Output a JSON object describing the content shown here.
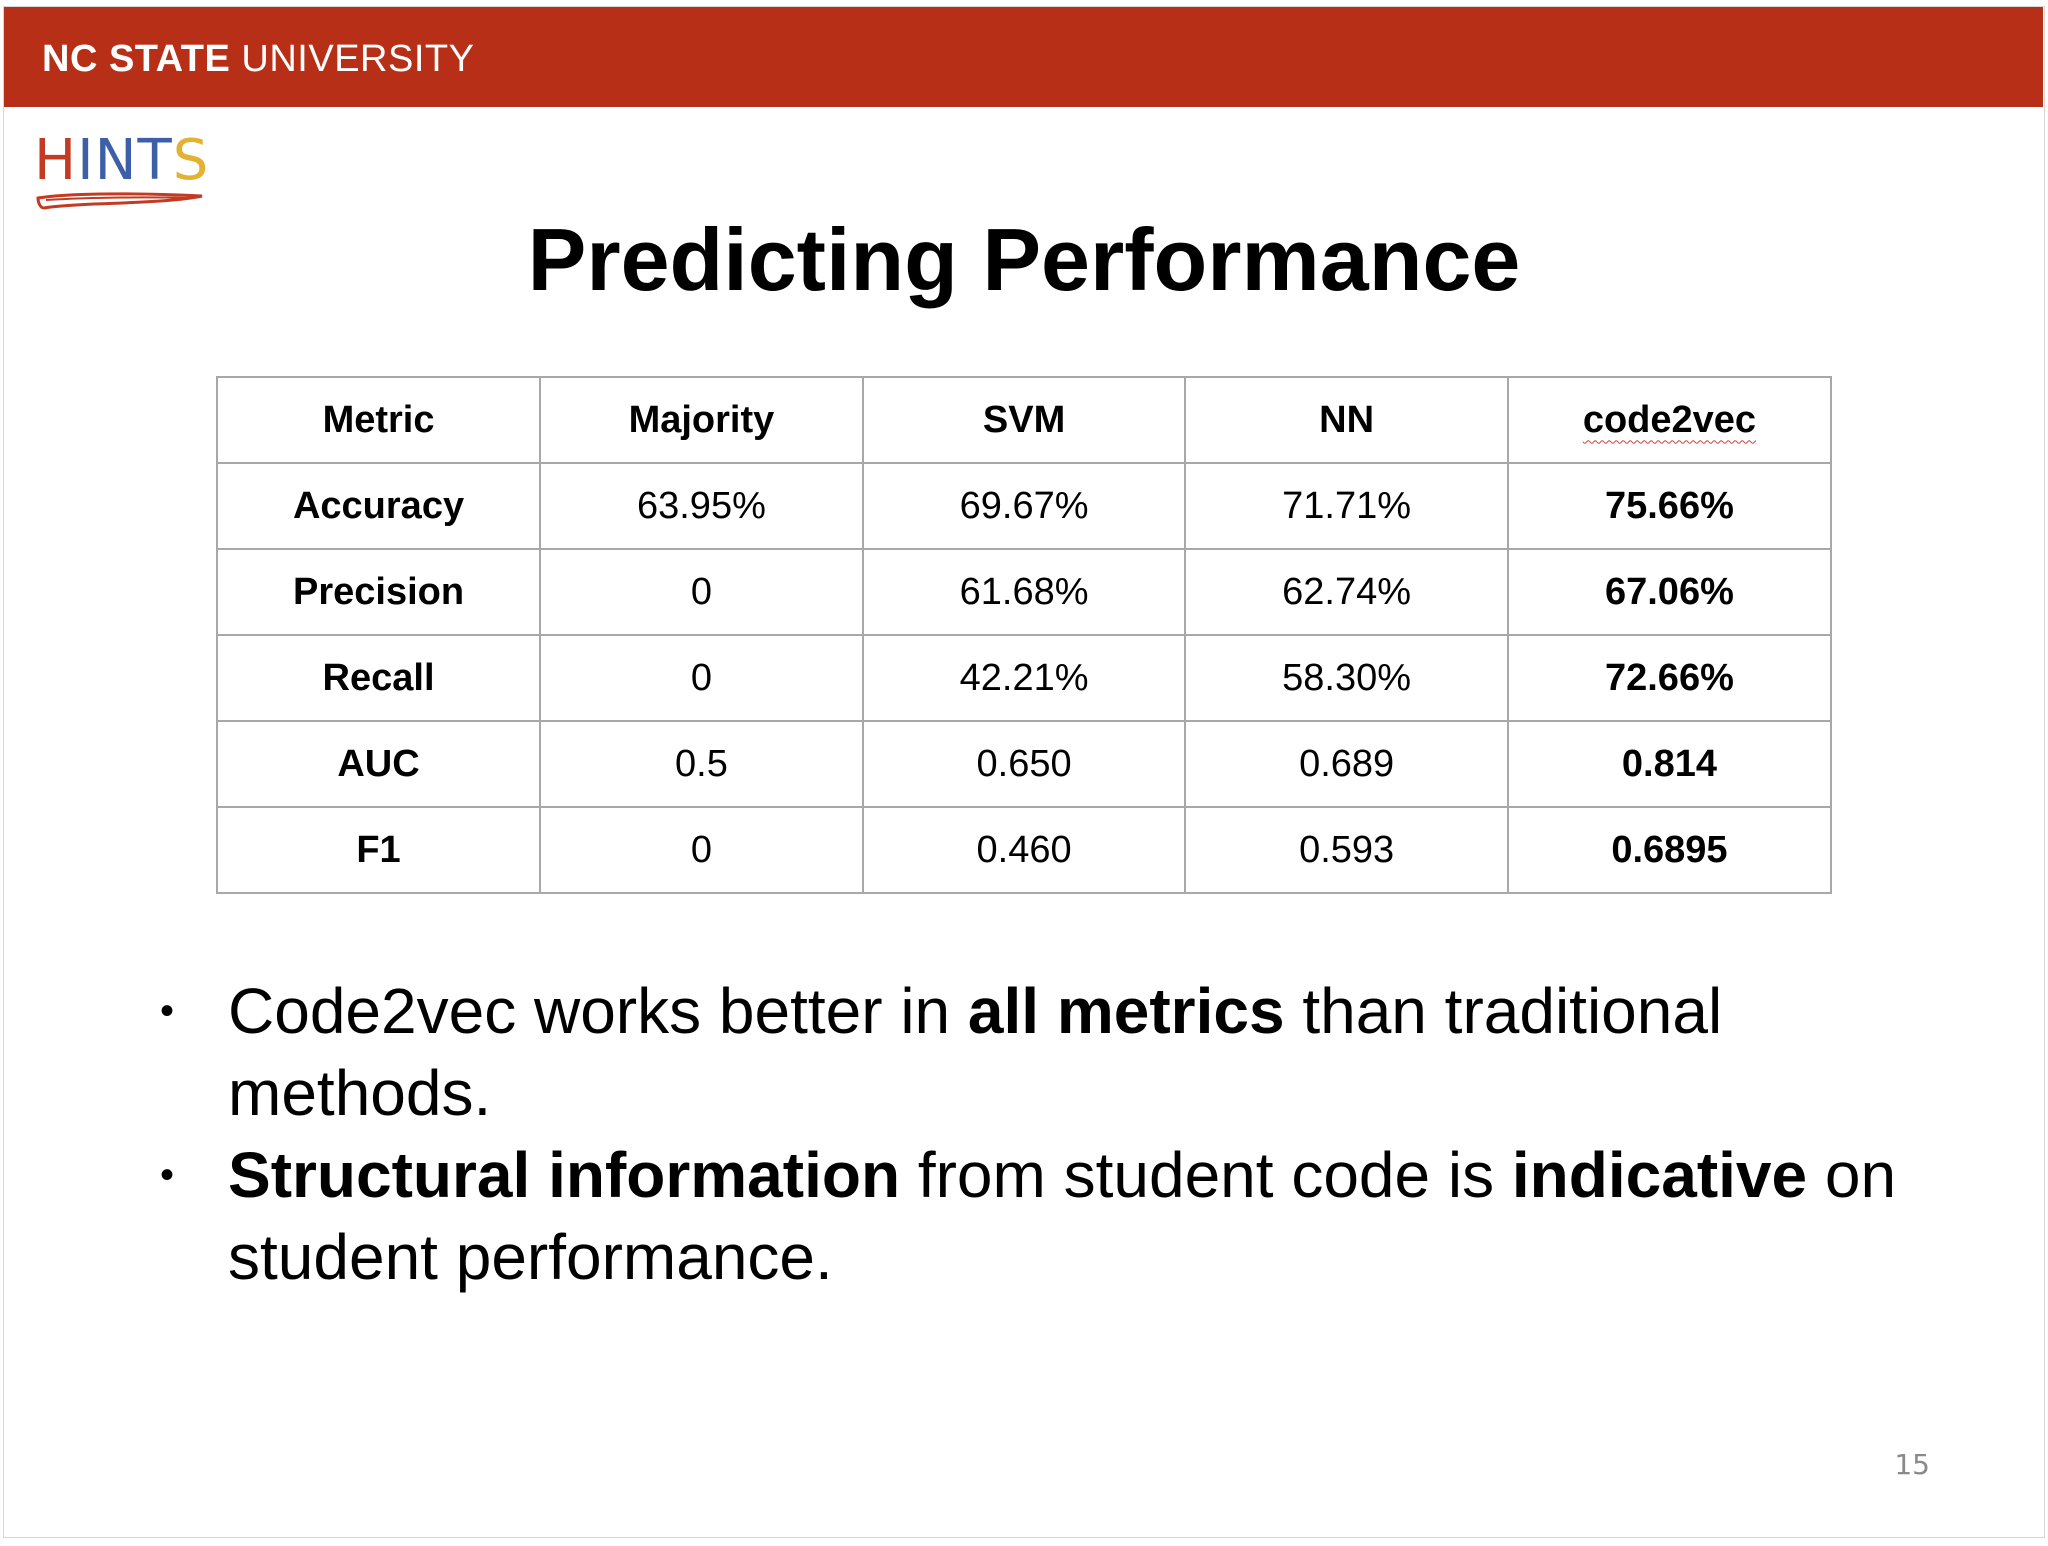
{
  "header": {
    "brand_bold": "NC STATE",
    "brand_light": " UNIVERSITY",
    "color": "#b82f18"
  },
  "logo": {
    "letters": [
      "H",
      "I",
      "N",
      "T",
      "S"
    ],
    "letter_colors": [
      "#c23b22",
      "#3c5fa8",
      "#3c5fa8",
      "#3c5fa8",
      "#e3b232"
    ],
    "icon": "hints-logo-icon"
  },
  "title": "Predicting Performance",
  "table": {
    "headers": [
      "Metric",
      "Majority",
      "SVM",
      "NN",
      "code2vec"
    ],
    "rows": [
      [
        "Accuracy",
        "63.95%",
        "69.67%",
        "71.71%",
        "75.66%"
      ],
      [
        "Precision",
        "0",
        "61.68%",
        "62.74%",
        "67.06%"
      ],
      [
        "Recall",
        "0",
        "42.21%",
        "58.30%",
        "72.66%"
      ],
      [
        "AUC",
        "0.5",
        "0.650",
        "0.689",
        "0.814"
      ],
      [
        "F1",
        "0",
        "0.460",
        "0.593",
        "0.6895"
      ]
    ]
  },
  "bullets": [
    {
      "parts": [
        {
          "text": "Code2vec works better in ",
          "bold": false
        },
        {
          "text": "all metrics",
          "bold": true
        },
        {
          "text": " than traditional methods.",
          "bold": false
        }
      ]
    },
    {
      "parts": [
        {
          "text": "Structural information",
          "bold": true
        },
        {
          "text": " from student code is ",
          "bold": false
        },
        {
          "text": "indicative",
          "bold": true
        },
        {
          "text": " on student performance.",
          "bold": false
        }
      ]
    }
  ],
  "bullet_symbol": "•",
  "page_number": "15"
}
